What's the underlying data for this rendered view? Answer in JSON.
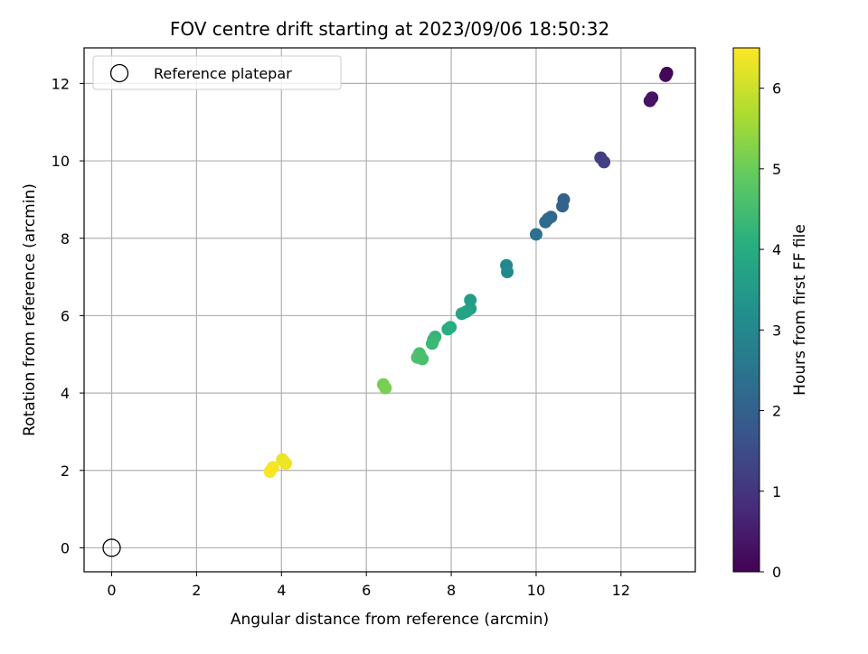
{
  "chart_data": {
    "type": "scatter",
    "title": "FOV centre drift starting at 2023/09/06 18:50:32",
    "xlabel": "Angular distance from reference (arcmin)",
    "ylabel": "Rotation from reference (arcmin)",
    "xlim": [
      -0.65,
      13.75
    ],
    "ylim": [
      -0.62,
      12.92
    ],
    "xticks": [
      0,
      2,
      4,
      6,
      8,
      10,
      12
    ],
    "yticks": [
      0,
      2,
      4,
      6,
      8,
      10,
      12
    ],
    "grid": true,
    "legend": {
      "placement": "upper-left",
      "entries": [
        "Reference platepar"
      ]
    },
    "reference_point": {
      "x": 0,
      "y": 0,
      "marker": "open-circle",
      "label": "Reference platepar"
    },
    "colorbar": {
      "label": "Hours from first FF file",
      "range": [
        0,
        6.5
      ],
      "ticks": [
        0,
        1,
        2,
        3,
        4,
        5,
        6
      ],
      "colormap": "viridis"
    },
    "points": [
      {
        "x": 13.08,
        "y": 12.27,
        "hours": 0.05
      },
      {
        "x": 13.05,
        "y": 12.2,
        "hours": 0.1
      },
      {
        "x": 12.73,
        "y": 11.63,
        "hours": 0.3
      },
      {
        "x": 12.68,
        "y": 11.55,
        "hours": 0.35
      },
      {
        "x": 11.52,
        "y": 10.08,
        "hours": 1.2
      },
      {
        "x": 11.6,
        "y": 9.97,
        "hours": 1.25
      },
      {
        "x": 10.65,
        "y": 9.0,
        "hours": 2.0
      },
      {
        "x": 10.62,
        "y": 8.83,
        "hours": 2.05
      },
      {
        "x": 10.35,
        "y": 8.55,
        "hours": 2.15
      },
      {
        "x": 10.28,
        "y": 8.5,
        "hours": 2.2
      },
      {
        "x": 10.22,
        "y": 8.42,
        "hours": 2.25
      },
      {
        "x": 10.0,
        "y": 8.1,
        "hours": 2.4
      },
      {
        "x": 9.3,
        "y": 7.3,
        "hours": 3.0
      },
      {
        "x": 9.32,
        "y": 7.13,
        "hours": 3.05
      },
      {
        "x": 8.45,
        "y": 6.4,
        "hours": 3.6
      },
      {
        "x": 8.45,
        "y": 6.18,
        "hours": 3.65
      },
      {
        "x": 8.35,
        "y": 6.1,
        "hours": 3.7
      },
      {
        "x": 8.25,
        "y": 6.05,
        "hours": 3.75
      },
      {
        "x": 7.98,
        "y": 5.7,
        "hours": 4.0
      },
      {
        "x": 7.92,
        "y": 5.65,
        "hours": 4.05
      },
      {
        "x": 7.62,
        "y": 5.45,
        "hours": 4.25
      },
      {
        "x": 7.58,
        "y": 5.38,
        "hours": 4.3
      },
      {
        "x": 7.55,
        "y": 5.28,
        "hours": 4.35
      },
      {
        "x": 7.25,
        "y": 5.02,
        "hours": 4.55
      },
      {
        "x": 7.2,
        "y": 4.92,
        "hours": 4.6
      },
      {
        "x": 7.32,
        "y": 4.88,
        "hours": 4.58
      },
      {
        "x": 6.4,
        "y": 4.22,
        "hours": 5.1
      },
      {
        "x": 6.45,
        "y": 4.13,
        "hours": 5.15
      },
      {
        "x": 4.02,
        "y": 2.28,
        "hours": 6.3
      },
      {
        "x": 4.1,
        "y": 2.18,
        "hours": 6.35
      },
      {
        "x": 3.8,
        "y": 2.08,
        "hours": 6.4
      },
      {
        "x": 3.73,
        "y": 1.97,
        "hours": 6.45
      }
    ]
  }
}
